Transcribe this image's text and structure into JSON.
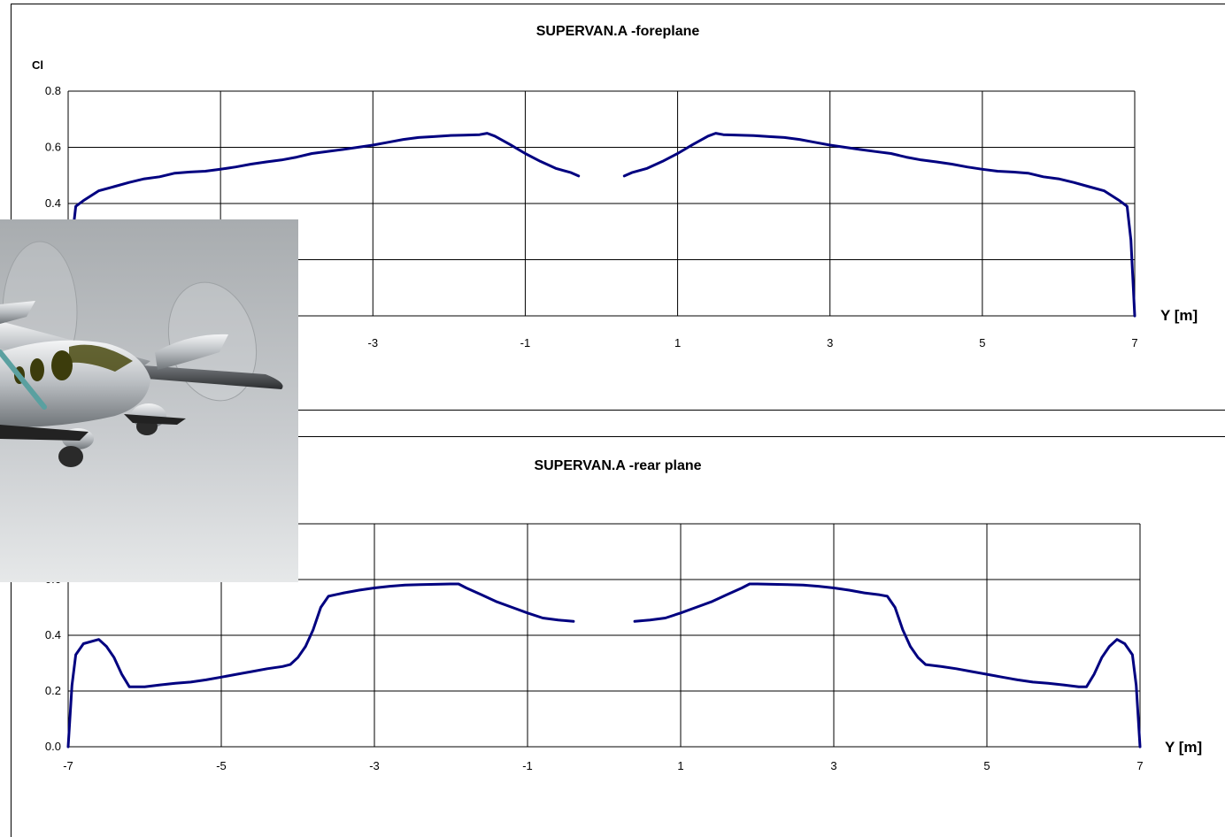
{
  "chart_data": [
    {
      "type": "line",
      "title": "SUPERVAN.A -foreplane",
      "ylabel": "Cl",
      "xlabel": "Y [m]",
      "xlim": [
        -7,
        7
      ],
      "ylim": [
        0,
        0.8
      ],
      "x_ticks": [
        "-7",
        "-5",
        "-3",
        "-1",
        "1",
        "3",
        "5",
        "7"
      ],
      "y_ticks": [
        "0.0",
        "0.2",
        "0.4",
        "0.6",
        "0.8"
      ],
      "grid": true,
      "series": [
        {
          "color": "#000080",
          "segments": [
            [
              [
                -7.0,
                0.0
              ],
              [
                -6.95,
                0.27
              ],
              [
                -6.9,
                0.39
              ],
              [
                -6.8,
                0.41
              ],
              [
                -6.6,
                0.445
              ],
              [
                -6.4,
                0.46
              ],
              [
                -6.2,
                0.475
              ],
              [
                -6.0,
                0.488
              ],
              [
                -5.8,
                0.495
              ],
              [
                -5.6,
                0.508
              ],
              [
                -5.4,
                0.512
              ],
              [
                -5.2,
                0.515
              ],
              [
                -5.0,
                0.522
              ],
              [
                -4.8,
                0.53
              ],
              [
                -4.6,
                0.54
              ],
              [
                -4.4,
                0.548
              ],
              [
                -4.2,
                0.555
              ],
              [
                -4.0,
                0.565
              ],
              [
                -3.8,
                0.578
              ],
              [
                -3.6,
                0.585
              ],
              [
                -3.4,
                0.592
              ],
              [
                -3.2,
                0.6
              ],
              [
                -3.0,
                0.608
              ],
              [
                -2.8,
                0.618
              ],
              [
                -2.6,
                0.628
              ],
              [
                -2.4,
                0.635
              ],
              [
                -2.2,
                0.638
              ],
              [
                -2.0,
                0.642
              ],
              [
                -1.8,
                0.643
              ],
              [
                -1.6,
                0.645
              ],
              [
                -1.5,
                0.65
              ],
              [
                -1.4,
                0.64
              ],
              [
                -1.2,
                0.61
              ],
              [
                -1.0,
                0.578
              ],
              [
                -0.8,
                0.55
              ],
              [
                -0.6,
                0.525
              ],
              [
                -0.4,
                0.51
              ],
              [
                -0.3,
                0.498
              ]
            ],
            [
              [
                0.3,
                0.498
              ],
              [
                0.4,
                0.51
              ],
              [
                0.6,
                0.525
              ],
              [
                0.8,
                0.55
              ],
              [
                1.0,
                0.578
              ],
              [
                1.2,
                0.61
              ],
              [
                1.4,
                0.64
              ],
              [
                1.5,
                0.65
              ],
              [
                1.6,
                0.645
              ],
              [
                1.8,
                0.643
              ],
              [
                2.0,
                0.642
              ],
              [
                2.2,
                0.638
              ],
              [
                2.4,
                0.635
              ],
              [
                2.6,
                0.628
              ],
              [
                2.8,
                0.618
              ],
              [
                3.0,
                0.608
              ],
              [
                3.2,
                0.6
              ],
              [
                3.4,
                0.592
              ],
              [
                3.6,
                0.585
              ],
              [
                3.8,
                0.578
              ],
              [
                4.0,
                0.565
              ],
              [
                4.2,
                0.555
              ],
              [
                4.4,
                0.548
              ],
              [
                4.6,
                0.54
              ],
              [
                4.8,
                0.53
              ],
              [
                5.0,
                0.522
              ],
              [
                5.2,
                0.515
              ],
              [
                5.4,
                0.512
              ],
              [
                5.6,
                0.508
              ],
              [
                5.8,
                0.495
              ],
              [
                6.0,
                0.488
              ],
              [
                6.2,
                0.475
              ],
              [
                6.4,
                0.46
              ],
              [
                6.6,
                0.445
              ],
              [
                6.8,
                0.41
              ],
              [
                6.9,
                0.39
              ],
              [
                6.95,
                0.27
              ],
              [
                7.0,
                0.0
              ]
            ]
          ]
        }
      ]
    },
    {
      "type": "line",
      "title": "SUPERVAN.A -rear plane",
      "xlabel": "Y [m]",
      "xlim": [
        -7,
        7
      ],
      "ylim": [
        0,
        0.8
      ],
      "x_ticks": [
        "-7",
        "-5",
        "-3",
        "-1",
        "1",
        "3",
        "5",
        "7"
      ],
      "y_ticks": [
        "0.0",
        "0.2",
        "0.4",
        "0.6"
      ],
      "grid": true,
      "series": [
        {
          "color": "#000080",
          "segments": [
            [
              [
                -7.0,
                0.0
              ],
              [
                -6.95,
                0.22
              ],
              [
                -6.9,
                0.33
              ],
              [
                -6.8,
                0.37
              ],
              [
                -6.6,
                0.385
              ],
              [
                -6.5,
                0.36
              ],
              [
                -6.4,
                0.32
              ],
              [
                -6.3,
                0.26
              ],
              [
                -6.2,
                0.215
              ],
              [
                -6.0,
                0.215
              ],
              [
                -5.8,
                0.222
              ],
              [
                -5.6,
                0.228
              ],
              [
                -5.4,
                0.232
              ],
              [
                -5.2,
                0.24
              ],
              [
                -5.0,
                0.25
              ],
              [
                -4.8,
                0.26
              ],
              [
                -4.6,
                0.27
              ],
              [
                -4.4,
                0.28
              ],
              [
                -4.2,
                0.288
              ],
              [
                -4.1,
                0.295
              ],
              [
                -4.0,
                0.32
              ],
              [
                -3.9,
                0.36
              ],
              [
                -3.8,
                0.42
              ],
              [
                -3.7,
                0.5
              ],
              [
                -3.6,
                0.54
              ],
              [
                -3.4,
                0.552
              ],
              [
                -3.2,
                0.562
              ],
              [
                -3.0,
                0.57
              ],
              [
                -2.8,
                0.576
              ],
              [
                -2.6,
                0.58
              ],
              [
                -2.4,
                0.582
              ],
              [
                -2.2,
                0.583
              ],
              [
                -2.0,
                0.584
              ],
              [
                -1.9,
                0.584
              ],
              [
                -1.8,
                0.57
              ],
              [
                -1.6,
                0.545
              ],
              [
                -1.4,
                0.52
              ],
              [
                -1.2,
                0.5
              ],
              [
                -1.0,
                0.48
              ],
              [
                -0.8,
                0.462
              ],
              [
                -0.6,
                0.455
              ],
              [
                -0.4,
                0.45
              ]
            ],
            [
              [
                0.4,
                0.45
              ],
              [
                0.6,
                0.455
              ],
              [
                0.8,
                0.462
              ],
              [
                1.0,
                0.48
              ],
              [
                1.2,
                0.5
              ],
              [
                1.4,
                0.52
              ],
              [
                1.6,
                0.545
              ],
              [
                1.8,
                0.57
              ],
              [
                1.9,
                0.584
              ],
              [
                2.0,
                0.584
              ],
              [
                2.2,
                0.583
              ],
              [
                2.4,
                0.582
              ],
              [
                2.6,
                0.58
              ],
              [
                2.8,
                0.576
              ],
              [
                3.0,
                0.57
              ],
              [
                3.2,
                0.562
              ],
              [
                3.4,
                0.552
              ],
              [
                3.6,
                0.545
              ],
              [
                3.7,
                0.54
              ],
              [
                3.8,
                0.5
              ],
              [
                3.9,
                0.42
              ],
              [
                4.0,
                0.36
              ],
              [
                4.1,
                0.32
              ],
              [
                4.2,
                0.295
              ],
              [
                4.4,
                0.288
              ],
              [
                4.6,
                0.28
              ],
              [
                4.8,
                0.27
              ],
              [
                5.0,
                0.26
              ],
              [
                5.2,
                0.25
              ],
              [
                5.4,
                0.24
              ],
              [
                5.6,
                0.232
              ],
              [
                5.8,
                0.228
              ],
              [
                6.0,
                0.222
              ],
              [
                6.2,
                0.215
              ],
              [
                6.3,
                0.215
              ],
              [
                6.4,
                0.26
              ],
              [
                6.5,
                0.32
              ],
              [
                6.6,
                0.36
              ],
              [
                6.7,
                0.385
              ],
              [
                6.8,
                0.37
              ],
              [
                6.9,
                0.33
              ],
              [
                6.95,
                0.22
              ],
              [
                7.0,
                0.0
              ]
            ]
          ]
        }
      ]
    }
  ],
  "image": {
    "description_icon": "aircraft-render-icon"
  }
}
